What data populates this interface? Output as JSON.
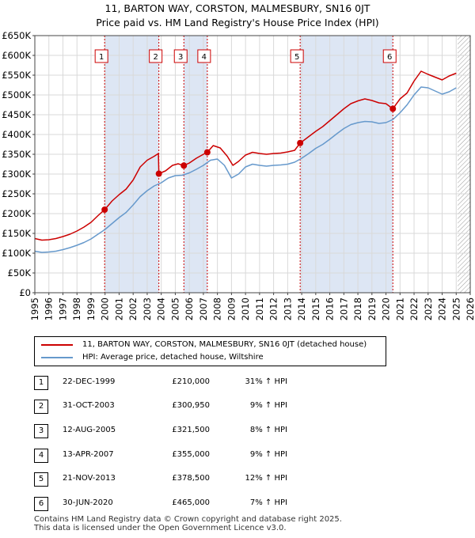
{
  "chart_title_line1": "11, BARTON WAY, CORSTON, MALMESBURY, SN16 0JT",
  "chart_title_line2": "Price paid vs. HM Land Registry's House Price Index (HPI)",
  "colors": {
    "property": "#cc0000",
    "hpi": "#6699cc",
    "shade": "#dde6f4",
    "grid": "#d9d9d9"
  },
  "legend": {
    "property_label": "11, BARTON WAY, CORSTON, MALMESBURY, SN16 0JT (detached house)",
    "hpi_label": "HPI: Average price, detached house, Wiltshire"
  },
  "sales": [
    {
      "num": "1",
      "date": "22-DEC-1999",
      "price": "£210,000",
      "hpi_change": "31% ↑ HPI",
      "year": 1999.97,
      "value": 210000
    },
    {
      "num": "2",
      "date": "31-OCT-2003",
      "price": "£300,950",
      "hpi_change": "9% ↑ HPI",
      "year": 2003.83,
      "value": 300950
    },
    {
      "num": "3",
      "date": "12-AUG-2005",
      "price": "£321,500",
      "hpi_change": "8% ↑ HPI",
      "year": 2005.61,
      "value": 321500
    },
    {
      "num": "4",
      "date": "13-APR-2007",
      "price": "£355,000",
      "hpi_change": "9% ↑ HPI",
      "year": 2007.28,
      "value": 355000
    },
    {
      "num": "5",
      "date": "21-NOV-2013",
      "price": "£378,500",
      "hpi_change": "12% ↑ HPI",
      "year": 2013.89,
      "value": 378500
    },
    {
      "num": "6",
      "date": "30-JUN-2020",
      "price": "£465,000",
      "hpi_change": "7% ↑ HPI",
      "year": 2020.49,
      "value": 465000
    }
  ],
  "footer_line1": "Contains HM Land Registry data © Crown copyright and database right 2025.",
  "footer_line2": "This data is licensed under the Open Government Licence v3.0.",
  "chart_data": {
    "type": "line",
    "x_range": [
      1995,
      2026
    ],
    "ylim": [
      0,
      650000
    ],
    "y_ticks": [
      0,
      50000,
      100000,
      150000,
      200000,
      250000,
      300000,
      350000,
      400000,
      450000,
      500000,
      550000,
      600000,
      650000
    ],
    "y_tick_labels": [
      "£0",
      "£50K",
      "£100K",
      "£150K",
      "£200K",
      "£250K",
      "£300K",
      "£350K",
      "£400K",
      "£450K",
      "£500K",
      "£550K",
      "£600K",
      "£650K"
    ],
    "x_ticks": [
      1995,
      1996,
      1997,
      1998,
      1999,
      2000,
      2001,
      2002,
      2003,
      2004,
      2005,
      2006,
      2007,
      2008,
      2009,
      2010,
      2011,
      2012,
      2013,
      2014,
      2015,
      2016,
      2017,
      2018,
      2019,
      2020,
      2021,
      2022,
      2023,
      2024,
      2025,
      2026
    ],
    "grid": true,
    "shaded_ranges": [
      [
        1999.97,
        2003.83
      ],
      [
        2005.61,
        2007.28
      ],
      [
        2013.89,
        2020.49
      ]
    ],
    "hatched_range": [
      2025.1,
      2026
    ],
    "series": [
      {
        "name": "11, BARTON WAY, CORSTON, MALMESBURY, SN16 0JT (detached house)",
        "color": "#cc0000",
        "points": [
          [
            1995.0,
            137000
          ],
          [
            1995.5,
            133000
          ],
          [
            1996.0,
            134000
          ],
          [
            1996.5,
            137000
          ],
          [
            1997.0,
            142000
          ],
          [
            1997.5,
            148000
          ],
          [
            1998.0,
            156000
          ],
          [
            1998.5,
            166000
          ],
          [
            1999.0,
            178000
          ],
          [
            1999.5,
            195000
          ],
          [
            1999.97,
            210000
          ],
          [
            2000.5,
            232000
          ],
          [
            2001.0,
            248000
          ],
          [
            2001.5,
            262000
          ],
          [
            2002.0,
            285000
          ],
          [
            2002.5,
            318000
          ],
          [
            2003.0,
            335000
          ],
          [
            2003.5,
            345000
          ],
          [
            2003.8,
            352000
          ],
          [
            2003.83,
            300950
          ],
          [
            2004.3,
            308000
          ],
          [
            2004.8,
            322000
          ],
          [
            2005.2,
            326000
          ],
          [
            2005.61,
            321500
          ],
          [
            2006.0,
            328000
          ],
          [
            2006.5,
            340000
          ],
          [
            2007.0,
            350000
          ],
          [
            2007.28,
            355000
          ],
          [
            2007.7,
            372000
          ],
          [
            2008.2,
            366000
          ],
          [
            2008.7,
            345000
          ],
          [
            2009.1,
            322000
          ],
          [
            2009.5,
            332000
          ],
          [
            2010.0,
            348000
          ],
          [
            2010.5,
            355000
          ],
          [
            2011.0,
            352000
          ],
          [
            2011.5,
            350000
          ],
          [
            2012.0,
            352000
          ],
          [
            2012.5,
            353000
          ],
          [
            2013.0,
            356000
          ],
          [
            2013.5,
            360000
          ],
          [
            2013.89,
            378500
          ],
          [
            2014.4,
            392000
          ],
          [
            2015.0,
            408000
          ],
          [
            2015.5,
            420000
          ],
          [
            2016.0,
            435000
          ],
          [
            2016.5,
            450000
          ],
          [
            2017.0,
            465000
          ],
          [
            2017.5,
            478000
          ],
          [
            2018.0,
            485000
          ],
          [
            2018.5,
            490000
          ],
          [
            2019.0,
            486000
          ],
          [
            2019.5,
            480000
          ],
          [
            2020.0,
            478000
          ],
          [
            2020.49,
            465000
          ],
          [
            2021.0,
            490000
          ],
          [
            2021.5,
            505000
          ],
          [
            2022.0,
            535000
          ],
          [
            2022.5,
            560000
          ],
          [
            2023.0,
            552000
          ],
          [
            2023.5,
            545000
          ],
          [
            2024.0,
            538000
          ],
          [
            2024.5,
            548000
          ],
          [
            2025.0,
            555000
          ]
        ]
      },
      {
        "name": "HPI: Average price, detached house, Wiltshire",
        "color": "#6699cc",
        "points": [
          [
            1995.0,
            105000
          ],
          [
            1995.5,
            102000
          ],
          [
            1996.0,
            103000
          ],
          [
            1996.5,
            105000
          ],
          [
            1997.0,
            109000
          ],
          [
            1997.5,
            114000
          ],
          [
            1998.0,
            120000
          ],
          [
            1998.5,
            127000
          ],
          [
            1999.0,
            136000
          ],
          [
            1999.5,
            148000
          ],
          [
            2000.0,
            160000
          ],
          [
            2000.5,
            175000
          ],
          [
            2001.0,
            190000
          ],
          [
            2001.5,
            203000
          ],
          [
            2002.0,
            222000
          ],
          [
            2002.5,
            243000
          ],
          [
            2003.0,
            258000
          ],
          [
            2003.5,
            270000
          ],
          [
            2004.0,
            278000
          ],
          [
            2004.5,
            290000
          ],
          [
            2005.0,
            296000
          ],
          [
            2005.5,
            297000
          ],
          [
            2006.0,
            303000
          ],
          [
            2006.5,
            312000
          ],
          [
            2007.0,
            322000
          ],
          [
            2007.5,
            335000
          ],
          [
            2008.0,
            338000
          ],
          [
            2008.5,
            322000
          ],
          [
            2009.0,
            290000
          ],
          [
            2009.5,
            300000
          ],
          [
            2010.0,
            318000
          ],
          [
            2010.5,
            325000
          ],
          [
            2011.0,
            322000
          ],
          [
            2011.5,
            320000
          ],
          [
            2012.0,
            322000
          ],
          [
            2012.5,
            323000
          ],
          [
            2013.0,
            325000
          ],
          [
            2013.5,
            330000
          ],
          [
            2014.0,
            340000
          ],
          [
            2014.5,
            352000
          ],
          [
            2015.0,
            365000
          ],
          [
            2015.5,
            375000
          ],
          [
            2016.0,
            388000
          ],
          [
            2016.5,
            402000
          ],
          [
            2017.0,
            415000
          ],
          [
            2017.5,
            425000
          ],
          [
            2018.0,
            430000
          ],
          [
            2018.5,
            433000
          ],
          [
            2019.0,
            432000
          ],
          [
            2019.5,
            428000
          ],
          [
            2020.0,
            430000
          ],
          [
            2020.5,
            438000
          ],
          [
            2021.0,
            455000
          ],
          [
            2021.5,
            475000
          ],
          [
            2022.0,
            500000
          ],
          [
            2022.5,
            520000
          ],
          [
            2023.0,
            518000
          ],
          [
            2023.5,
            510000
          ],
          [
            2024.0,
            502000
          ],
          [
            2024.5,
            508000
          ],
          [
            2025.0,
            518000
          ]
        ]
      }
    ]
  }
}
